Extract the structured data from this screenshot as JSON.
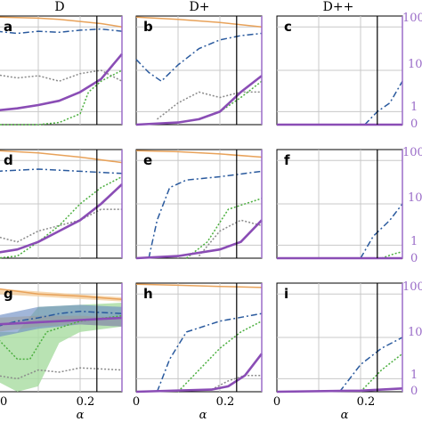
{
  "figure": {
    "column_titles": [
      "D",
      "D+",
      "D++"
    ],
    "xlabel": "α",
    "x_tick_labels": [
      "0",
      "0.2"
    ],
    "right_axis_tick_labels": [
      "100",
      "10",
      "1",
      "0"
    ]
  },
  "colors": {
    "orange": "#e8a25a",
    "orange_light": "#f3c48f",
    "blue": "#2a5a9e",
    "gray": "#8a8a8a",
    "green": "#4caf3f",
    "purple": "#8a4db5",
    "purple_axis": "#9a6cc8",
    "grid": "#c8c8c8",
    "vline": "#000000",
    "band_green": "#a8dca0",
    "band_blue": "#6f8fc4",
    "band_gray": "#9a9a9a",
    "band_orange": "#f5cfa0"
  },
  "chart_data": [
    {
      "panel": "a",
      "row": 0,
      "col": 0,
      "type": "line",
      "xlim": [
        0,
        0.3
      ],
      "vline": 0.24,
      "series": [
        {
          "color": "orange",
          "style": "solid",
          "x": [
            0,
            0.05,
            0.1,
            0.15,
            0.2,
            0.25,
            0.3
          ],
          "y": [
            0.99,
            0.985,
            0.98,
            0.97,
            0.95,
            0.93,
            0.9
          ]
        },
        {
          "color": "blue",
          "style": "dashdot",
          "x": [
            0,
            0.05,
            0.1,
            0.15,
            0.2,
            0.25,
            0.3
          ],
          "y": [
            0.86,
            0.84,
            0.86,
            0.85,
            0.87,
            0.88,
            0.86
          ]
        },
        {
          "color": "gray",
          "style": "dotted",
          "x": [
            0,
            0.05,
            0.1,
            0.15,
            0.2,
            0.25,
            0.3
          ],
          "y": [
            0.46,
            0.43,
            0.45,
            0.4,
            0.47,
            0.5,
            0.4
          ]
        },
        {
          "color": "green",
          "style": "dotted",
          "x": [
            0,
            0.05,
            0.1,
            0.15,
            0.2,
            0.22,
            0.25,
            0.3
          ],
          "y": [
            0,
            0,
            0,
            0.02,
            0.1,
            0.3,
            0.4,
            0.5
          ]
        },
        {
          "color": "purple",
          "style": "solid",
          "x": [
            0,
            0.05,
            0.1,
            0.15,
            0.2,
            0.25,
            0.3
          ],
          "y": [
            0.13,
            0.15,
            0.18,
            0.22,
            0.3,
            0.42,
            0.65
          ]
        }
      ]
    },
    {
      "panel": "b",
      "row": 0,
      "col": 1,
      "type": "line",
      "xlim": [
        0,
        0.3
      ],
      "vline": 0.24,
      "series": [
        {
          "color": "orange",
          "style": "solid",
          "x": [
            0,
            0.1,
            0.2,
            0.3
          ],
          "y": [
            0.99,
            0.97,
            0.94,
            0.9
          ]
        },
        {
          "color": "blue",
          "style": "dashdot",
          "x": [
            0,
            0.03,
            0.06,
            0.1,
            0.15,
            0.2,
            0.25,
            0.3
          ],
          "y": [
            0.6,
            0.48,
            0.4,
            0.55,
            0.7,
            0.78,
            0.82,
            0.84
          ]
        },
        {
          "color": "gray",
          "style": "dotted",
          "x": [
            0.05,
            0.1,
            0.15,
            0.2,
            0.25,
            0.3
          ],
          "y": [
            0.05,
            0.2,
            0.3,
            0.25,
            0.3,
            0.3
          ]
        },
        {
          "color": "green",
          "style": "dotted",
          "x": [
            0,
            0.1,
            0.15,
            0.2,
            0.25,
            0.3
          ],
          "y": [
            0,
            0.02,
            0.05,
            0.12,
            0.25,
            0.4
          ]
        },
        {
          "color": "purple",
          "style": "solid",
          "x": [
            0,
            0.1,
            0.15,
            0.2,
            0.25,
            0.3
          ],
          "y": [
            0,
            0.02,
            0.05,
            0.12,
            0.3,
            0.45
          ]
        }
      ]
    },
    {
      "panel": "c",
      "row": 0,
      "col": 2,
      "type": "line",
      "xlim": [
        0,
        0.3
      ],
      "vline": 0.24,
      "series": [
        {
          "color": "blue",
          "style": "dashdot",
          "x": [
            0.21,
            0.24,
            0.27,
            0.3
          ],
          "y": [
            0,
            0.12,
            0.2,
            0.4
          ]
        },
        {
          "color": "purple",
          "style": "solid",
          "x": [
            0,
            0.3
          ],
          "y": [
            0,
            0
          ]
        }
      ]
    },
    {
      "panel": "d",
      "row": 1,
      "col": 0,
      "type": "line",
      "xlim": [
        0,
        0.3
      ],
      "vline": 0.24,
      "series": [
        {
          "color": "orange",
          "style": "solid",
          "x": [
            0,
            0.1,
            0.2,
            0.3
          ],
          "y": [
            0.99,
            0.97,
            0.93,
            0.88
          ]
        },
        {
          "color": "blue",
          "style": "dashdot",
          "x": [
            0,
            0.1,
            0.2,
            0.3
          ],
          "y": [
            0.8,
            0.82,
            0.8,
            0.78
          ]
        },
        {
          "color": "gray",
          "style": "dotted",
          "x": [
            0,
            0.05,
            0.1,
            0.15,
            0.2,
            0.25,
            0.3
          ],
          "y": [
            0.2,
            0.15,
            0.25,
            0.3,
            0.35,
            0.45,
            0.45
          ]
        },
        {
          "color": "green",
          "style": "dotted",
          "x": [
            0,
            0.05,
            0.1,
            0.15,
            0.2,
            0.25,
            0.3
          ],
          "y": [
            0,
            0.02,
            0.15,
            0.3,
            0.5,
            0.65,
            0.75
          ]
        },
        {
          "color": "purple",
          "style": "solid",
          "x": [
            0,
            0.05,
            0.1,
            0.15,
            0.2,
            0.25,
            0.3
          ],
          "y": [
            0.05,
            0.08,
            0.15,
            0.25,
            0.35,
            0.5,
            0.68
          ]
        }
      ]
    },
    {
      "panel": "e",
      "row": 1,
      "col": 1,
      "type": "line",
      "xlim": [
        0,
        0.3
      ],
      "vline": 0.24,
      "series": [
        {
          "color": "orange",
          "style": "solid",
          "x": [
            0,
            0.1,
            0.2,
            0.3
          ],
          "y": [
            0.99,
            0.98,
            0.96,
            0.93
          ]
        },
        {
          "color": "blue",
          "style": "dashdot",
          "x": [
            0.03,
            0.05,
            0.08,
            0.12,
            0.2,
            0.3
          ],
          "y": [
            0,
            0.35,
            0.65,
            0.72,
            0.75,
            0.8
          ]
        },
        {
          "color": "gray",
          "style": "dotted",
          "x": [
            0.15,
            0.2,
            0.25,
            0.3
          ],
          "y": [
            0.02,
            0.25,
            0.35,
            0.3
          ]
        },
        {
          "color": "green",
          "style": "dotted",
          "x": [
            0.12,
            0.17,
            0.22,
            0.3
          ],
          "y": [
            0,
            0.15,
            0.45,
            0.55
          ]
        },
        {
          "color": "purple",
          "style": "solid",
          "x": [
            0,
            0.1,
            0.2,
            0.25,
            0.3
          ],
          "y": [
            0,
            0.02,
            0.08,
            0.15,
            0.35
          ]
        }
      ]
    },
    {
      "panel": "f",
      "row": 1,
      "col": 2,
      "type": "line",
      "xlim": [
        0,
        0.3
      ],
      "vline": 0.24,
      "series": [
        {
          "color": "blue",
          "style": "dashdot",
          "x": [
            0.2,
            0.23,
            0.27,
            0.3
          ],
          "y": [
            0,
            0.2,
            0.35,
            0.5
          ]
        },
        {
          "color": "green",
          "style": "dotted",
          "x": [
            0.25,
            0.28,
            0.3
          ],
          "y": [
            0,
            0.04,
            0.06
          ]
        },
        {
          "color": "purple",
          "style": "solid",
          "x": [
            0,
            0.3
          ],
          "y": [
            0,
            0
          ]
        }
      ]
    },
    {
      "panel": "g",
      "row": 2,
      "col": 0,
      "type": "line",
      "xlim": [
        0,
        0.3
      ],
      "vline": 0.24,
      "series": [
        {
          "color": "orange",
          "style": "solid",
          "x": [
            0,
            0.1,
            0.2,
            0.3
          ],
          "y": [
            0.95,
            0.9,
            0.88,
            0.85
          ]
        },
        {
          "color": "blue",
          "style": "dashdot",
          "x": [
            0,
            0.05,
            0.1,
            0.15,
            0.2,
            0.3
          ],
          "y": [
            0.6,
            0.65,
            0.68,
            0.72,
            0.74,
            0.72
          ]
        },
        {
          "color": "gray",
          "style": "dotted",
          "x": [
            0,
            0.05,
            0.1,
            0.15,
            0.2,
            0.3
          ],
          "y": [
            0.15,
            0.12,
            0.2,
            0.18,
            0.22,
            0.2
          ]
        },
        {
          "color": "green",
          "style": "dotted",
          "x": [
            0,
            0.05,
            0.08,
            0.12,
            0.2,
            0.3
          ],
          "y": [
            0.5,
            0.3,
            0.3,
            0.55,
            0.65,
            0.7
          ]
        },
        {
          "color": "purple",
          "style": "solid",
          "x": [
            0,
            0.1,
            0.2,
            0.3
          ],
          "y": [
            0.62,
            0.64,
            0.66,
            0.68
          ]
        }
      ]
    },
    {
      "panel": "h",
      "row": 2,
      "col": 1,
      "type": "line",
      "xlim": [
        0,
        0.3
      ],
      "vline": 0.24,
      "series": [
        {
          "color": "orange",
          "style": "solid",
          "x": [
            0,
            0.1,
            0.2,
            0.3
          ],
          "y": [
            0.99,
            0.98,
            0.97,
            0.96
          ]
        },
        {
          "color": "blue",
          "style": "dashdot",
          "x": [
            0.05,
            0.08,
            0.12,
            0.2,
            0.3
          ],
          "y": [
            0,
            0.3,
            0.55,
            0.65,
            0.72
          ]
        },
        {
          "color": "gray",
          "style": "dotted",
          "x": [
            0.18,
            0.22,
            0.26,
            0.3
          ],
          "y": [
            0.02,
            0.1,
            0.15,
            0.15
          ]
        },
        {
          "color": "green",
          "style": "dotted",
          "x": [
            0.1,
            0.15,
            0.2,
            0.25,
            0.3
          ],
          "y": [
            0,
            0.2,
            0.4,
            0.55,
            0.65
          ]
        },
        {
          "color": "purple",
          "style": "solid",
          "x": [
            0,
            0.18,
            0.22,
            0.26,
            0.3
          ],
          "y": [
            0,
            0.02,
            0.05,
            0.15,
            0.35
          ]
        }
      ]
    },
    {
      "panel": "i",
      "row": 2,
      "col": 2,
      "type": "line",
      "xlim": [
        0,
        0.3
      ],
      "vline": 0.24,
      "series": [
        {
          "color": "blue",
          "style": "dashdot",
          "x": [
            0.15,
            0.2,
            0.25,
            0.3
          ],
          "y": [
            0,
            0.25,
            0.4,
            0.5
          ]
        },
        {
          "color": "green",
          "style": "dotted",
          "x": [
            0.2,
            0.25,
            0.3
          ],
          "y": [
            0,
            0.2,
            0.35
          ]
        },
        {
          "color": "purple",
          "style": "solid",
          "x": [
            0,
            0.2,
            0.3
          ],
          "y": [
            0,
            0.01,
            0.03
          ]
        }
      ]
    }
  ]
}
